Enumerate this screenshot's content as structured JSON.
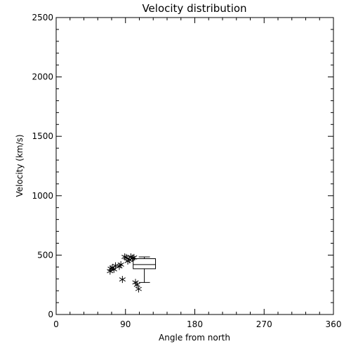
{
  "chart_data": {
    "type": "scatter",
    "title": "Velocity distribution",
    "xlabel": "Angle from north",
    "ylabel": "Velocity (km/s)",
    "xlim": [
      0,
      360
    ],
    "ylim": [
      0,
      2500
    ],
    "xticks": [
      "0",
      "90",
      "180",
      "270",
      "360"
    ],
    "yticks": [
      "0",
      "500",
      "1000",
      "1500",
      "2000",
      "2500"
    ],
    "grid": false,
    "marker": "asterisk",
    "points": [
      {
        "x": 70,
        "y": 365
      },
      {
        "x": 71,
        "y": 385
      },
      {
        "x": 73,
        "y": 395
      },
      {
        "x": 75,
        "y": 380
      },
      {
        "x": 77,
        "y": 410
      },
      {
        "x": 82,
        "y": 405
      },
      {
        "x": 84,
        "y": 420
      },
      {
        "x": 86,
        "y": 295
      },
      {
        "x": 89,
        "y": 485
      },
      {
        "x": 91,
        "y": 480
      },
      {
        "x": 93,
        "y": 450
      },
      {
        "x": 95,
        "y": 460
      },
      {
        "x": 97,
        "y": 485
      },
      {
        "x": 99,
        "y": 475
      },
      {
        "x": 101,
        "y": 480
      },
      {
        "x": 103,
        "y": 270
      },
      {
        "x": 105,
        "y": 250
      },
      {
        "x": 107,
        "y": 215
      }
    ],
    "boxplot": {
      "x_range": [
        100,
        129
      ],
      "whisker_low": 270,
      "q1": 385,
      "median": 420,
      "q3": 470,
      "whisker_high": 485
    }
  }
}
